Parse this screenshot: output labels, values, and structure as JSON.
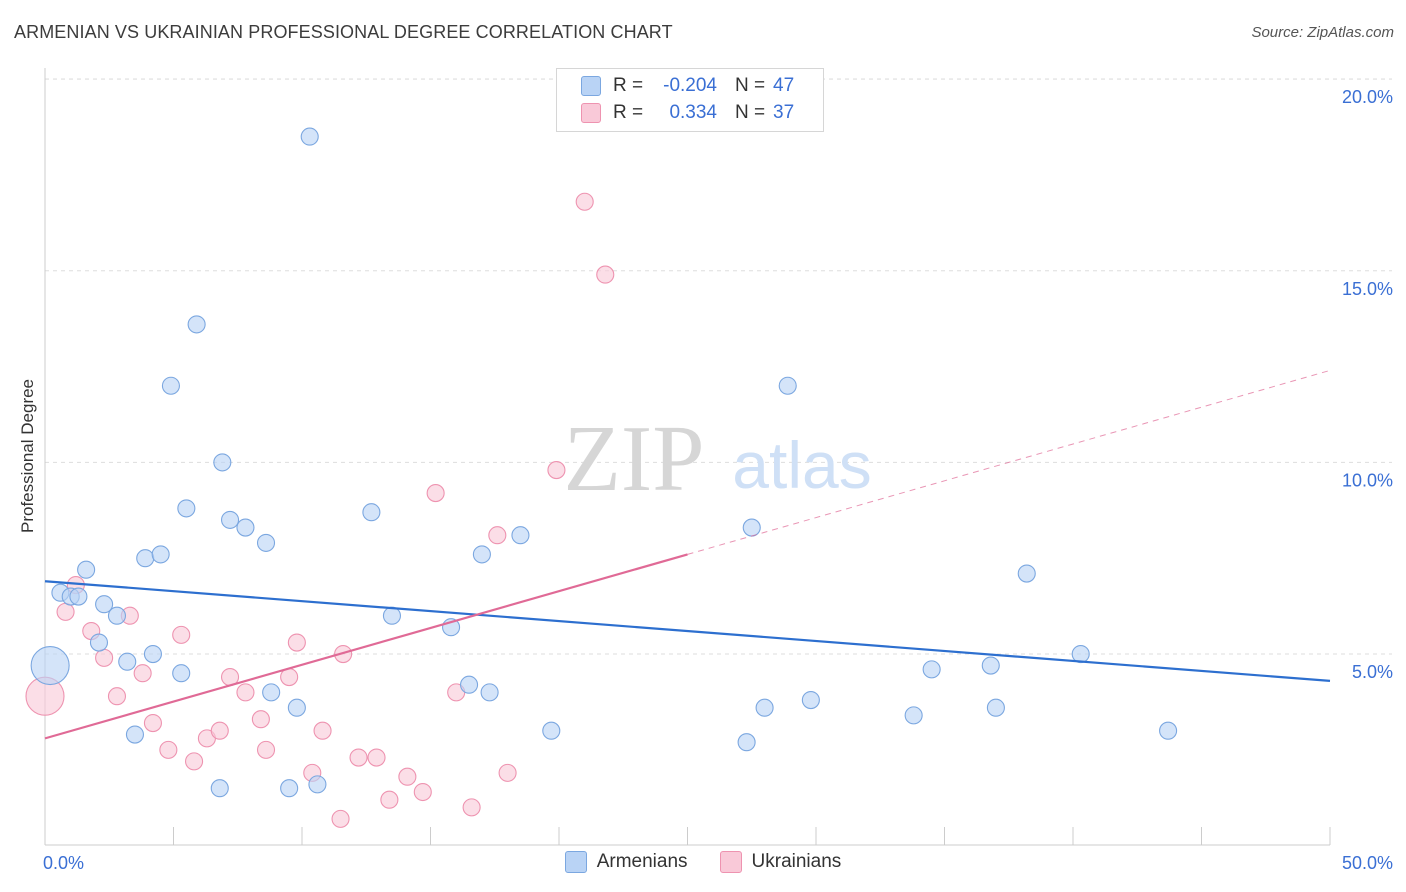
{
  "header": {
    "title": "ARMENIAN VS UKRAINIAN PROFESSIONAL DEGREE CORRELATION CHART",
    "source": "Source: ZipAtlas.com"
  },
  "watermark": {
    "zip": "ZIP",
    "atlas": "atlas"
  },
  "legend_top": {
    "armenians": {
      "r_label": "R =",
      "r_value": "-0.204",
      "n_label": "N =",
      "n_value": "47"
    },
    "ukrainians": {
      "r_label": "R =",
      "r_value": "0.334",
      "n_label": "N =",
      "n_value": "37"
    }
  },
  "colors": {
    "armenian_fill": "#b9d3f5",
    "armenian_stroke": "#7ba7e0",
    "armenian_line": "#2d6fcf",
    "ukrainian_fill": "#f9c9d8",
    "ukrainian_stroke": "#ee93b0",
    "ukrainian_line": "#e06a96",
    "axis_text": "#3a6fd4",
    "grid": "#dddddd"
  },
  "chart_data": {
    "type": "scatter",
    "title": "ARMENIAN VS UKRAINIAN PROFESSIONAL DEGREE CORRELATION CHART",
    "xlabel": "",
    "ylabel": "Professional Degree",
    "xlim": [
      0,
      50
    ],
    "ylim": [
      0,
      20.5
    ],
    "x_tick_labels": {
      "min": "0.0%",
      "max": "50.0%"
    },
    "y_ticks": [
      {
        "value": 5,
        "label": "5.0%"
      },
      {
        "value": 10,
        "label": "10.0%"
      },
      {
        "value": 15,
        "label": "15.0%"
      },
      {
        "value": 20,
        "label": "20.0%"
      }
    ],
    "grid": true,
    "legend": "bottom-center",
    "series": [
      {
        "name": "Armenians",
        "r": -0.204,
        "n": 47,
        "trend": {
          "x0": 0,
          "y0": 6.9,
          "x1": 50,
          "y1": 4.3,
          "solid_until": 50
        },
        "points": [
          {
            "x": 0.2,
            "y": 4.7,
            "big": true
          },
          {
            "x": 0.6,
            "y": 6.6
          },
          {
            "x": 1.0,
            "y": 6.5
          },
          {
            "x": 1.3,
            "y": 6.5
          },
          {
            "x": 1.6,
            "y": 7.2
          },
          {
            "x": 2.1,
            "y": 5.3
          },
          {
            "x": 2.3,
            "y": 6.3
          },
          {
            "x": 2.8,
            "y": 6.0
          },
          {
            "x": 3.2,
            "y": 4.8
          },
          {
            "x": 3.5,
            "y": 2.9
          },
          {
            "x": 3.9,
            "y": 7.5
          },
          {
            "x": 4.2,
            "y": 5.0
          },
          {
            "x": 4.5,
            "y": 7.6
          },
          {
            "x": 4.9,
            "y": 12.0
          },
          {
            "x": 5.3,
            "y": 4.5
          },
          {
            "x": 5.5,
            "y": 8.8
          },
          {
            "x": 5.9,
            "y": 13.6
          },
          {
            "x": 6.8,
            "y": 1.5
          },
          {
            "x": 6.9,
            "y": 10.0
          },
          {
            "x": 7.2,
            "y": 8.5
          },
          {
            "x": 7.8,
            "y": 8.3
          },
          {
            "x": 8.6,
            "y": 7.9
          },
          {
            "x": 8.8,
            "y": 4.0
          },
          {
            "x": 9.5,
            "y": 1.5
          },
          {
            "x": 9.8,
            "y": 3.6
          },
          {
            "x": 10.3,
            "y": 18.5
          },
          {
            "x": 10.6,
            "y": 1.6
          },
          {
            "x": 12.7,
            "y": 8.7
          },
          {
            "x": 13.5,
            "y": 6.0
          },
          {
            "x": 15.8,
            "y": 5.7
          },
          {
            "x": 16.5,
            "y": 4.2
          },
          {
            "x": 17.0,
            "y": 7.6
          },
          {
            "x": 17.3,
            "y": 4.0
          },
          {
            "x": 18.5,
            "y": 8.1
          },
          {
            "x": 19.7,
            "y": 3.0
          },
          {
            "x": 27.3,
            "y": 2.7
          },
          {
            "x": 27.5,
            "y": 8.3
          },
          {
            "x": 28.0,
            "y": 3.6
          },
          {
            "x": 28.9,
            "y": 12.0
          },
          {
            "x": 29.8,
            "y": 3.8
          },
          {
            "x": 33.8,
            "y": 3.4
          },
          {
            "x": 34.5,
            "y": 4.6
          },
          {
            "x": 36.8,
            "y": 4.7
          },
          {
            "x": 37.0,
            "y": 3.6
          },
          {
            "x": 38.2,
            "y": 7.1
          },
          {
            "x": 40.3,
            "y": 5.0
          },
          {
            "x": 43.7,
            "y": 3.0
          }
        ]
      },
      {
        "name": "Ukrainians",
        "r": 0.334,
        "n": 37,
        "trend": {
          "x0": 0,
          "y0": 2.8,
          "x1": 50,
          "y1": 12.4,
          "solid_until": 25
        },
        "points": [
          {
            "x": 0.0,
            "y": 3.9,
            "big": true
          },
          {
            "x": 0.8,
            "y": 6.1
          },
          {
            "x": 1.2,
            "y": 6.8
          },
          {
            "x": 1.8,
            "y": 5.6
          },
          {
            "x": 2.3,
            "y": 4.9
          },
          {
            "x": 2.8,
            "y": 3.9
          },
          {
            "x": 3.3,
            "y": 6.0
          },
          {
            "x": 3.8,
            "y": 4.5
          },
          {
            "x": 4.2,
            "y": 3.2
          },
          {
            "x": 4.8,
            "y": 2.5
          },
          {
            "x": 5.3,
            "y": 5.5
          },
          {
            "x": 5.8,
            "y": 2.2
          },
          {
            "x": 6.3,
            "y": 2.8
          },
          {
            "x": 6.8,
            "y": 3.0
          },
          {
            "x": 7.2,
            "y": 4.4
          },
          {
            "x": 7.8,
            "y": 4.0
          },
          {
            "x": 8.4,
            "y": 3.3
          },
          {
            "x": 8.6,
            "y": 2.5
          },
          {
            "x": 9.5,
            "y": 4.4
          },
          {
            "x": 9.8,
            "y": 5.3
          },
          {
            "x": 10.4,
            "y": 1.9
          },
          {
            "x": 10.8,
            "y": 3.0
          },
          {
            "x": 11.5,
            "y": 0.7
          },
          {
            "x": 11.6,
            "y": 5.0
          },
          {
            "x": 12.2,
            "y": 2.3
          },
          {
            "x": 12.9,
            "y": 2.3
          },
          {
            "x": 13.4,
            "y": 1.2
          },
          {
            "x": 14.1,
            "y": 1.8
          },
          {
            "x": 14.7,
            "y": 1.4
          },
          {
            "x": 15.2,
            "y": 9.2
          },
          {
            "x": 16.0,
            "y": 4.0
          },
          {
            "x": 16.6,
            "y": 1.0
          },
          {
            "x": 17.6,
            "y": 8.1
          },
          {
            "x": 18.0,
            "y": 1.9
          },
          {
            "x": 19.9,
            "y": 9.8
          },
          {
            "x": 21.0,
            "y": 16.8
          },
          {
            "x": 21.8,
            "y": 14.9
          }
        ]
      }
    ]
  }
}
